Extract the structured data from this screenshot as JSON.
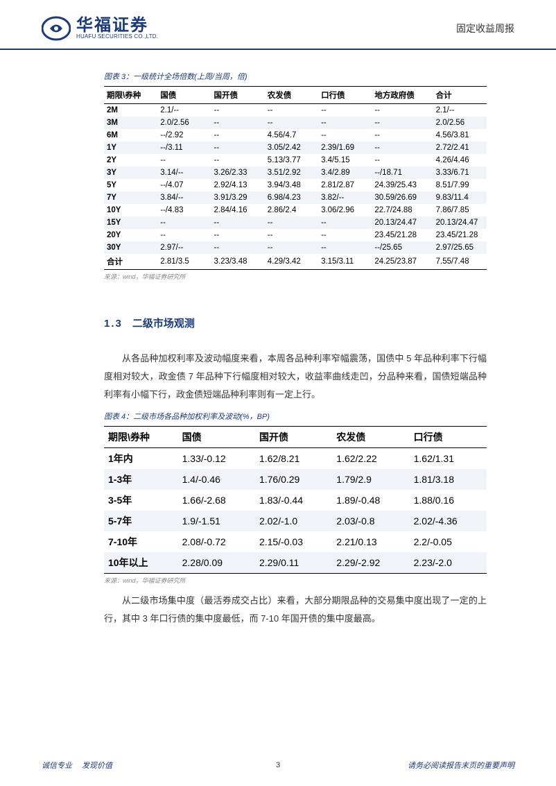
{
  "header": {
    "logo_cn": "华福证券",
    "logo_en": "HUAFU SECURITIES CO.,LTD.",
    "doc_type": "固定收益周报"
  },
  "table1": {
    "title": "图表 3：一级统计全场倍数(上周/当周，倍)",
    "columns": [
      "期限\\券种",
      "国债",
      "国开债",
      "农发债",
      "口行债",
      "地方政府债",
      "合计"
    ],
    "rows": [
      [
        "2M",
        "2.1/--",
        "--",
        "--",
        "--",
        "--",
        "2.1/--"
      ],
      [
        "3M",
        "2.0/2.56",
        "--",
        "--",
        "--",
        "--",
        "2.0/2.56"
      ],
      [
        "6M",
        "--/2.92",
        "--",
        "4.56/4.7",
        "--",
        "--",
        "4.56/3.81"
      ],
      [
        "1Y",
        "--/3.11",
        "--",
        "3.05/2.42",
        "2.39/1.69",
        "--",
        "2.72/2.41"
      ],
      [
        "2Y",
        "--",
        "--",
        "5.13/3.77",
        "3.4/5.15",
        "--",
        "4.26/4.46"
      ],
      [
        "3Y",
        "3.14/--",
        "3.26/2.33",
        "3.51/2.92",
        "3.4/2.89",
        "--/18.71",
        "3.33/6.71"
      ],
      [
        "5Y",
        "--/4.07",
        "2.92/4.13",
        "3.94/3.48",
        "2.81/2.87",
        "24.39/25.43",
        "8.51/7.99"
      ],
      [
        "7Y",
        "3.84/--",
        "3.91/3.29",
        "6.98/4.23",
        "3.82/--",
        "30.59/26.69",
        "9.83/11.4"
      ],
      [
        "10Y",
        "--/4.83",
        "2.84/4.16",
        "2.86/2.4",
        "3.06/2.96",
        "22.7/24.88",
        "7.86/7.85"
      ],
      [
        "15Y",
        "--",
        "--",
        "--",
        "--",
        "20.13/24.47",
        "20.13/24.47"
      ],
      [
        "20Y",
        "--",
        "--",
        "--",
        "--",
        "23.45/21.28",
        "23.45/21.28"
      ],
      [
        "30Y",
        "2.97/--",
        "--",
        "--",
        "--",
        "--/25.65",
        "2.97/25.65"
      ],
      [
        "合计",
        "2.81/3.5",
        "3.23/3.48",
        "4.29/3.42",
        "3.15/3.11",
        "24.25/23.87",
        "7.55/7.48"
      ]
    ],
    "source": "来源：wind，华福证券研究所"
  },
  "section": {
    "num": "1.3",
    "title": "二级市场观测"
  },
  "para1": "从各品种加权利率及波动幅度来看，本周各品种利率窄幅震荡，国债中 5 年品种利率下行幅度相对较大，政金债 7 年品种下行幅度相对较大，收益率曲线走凹，分品种来看，国债短端品种利率有小幅下行，政金债短端品种利率则有一定上行。",
  "table2": {
    "title": "图表 4：二级市场各品种加权利率及波动(%，BP)",
    "columns": [
      "期限\\券种",
      "国债",
      "国开债",
      "农发债",
      "口行债"
    ],
    "rows": [
      [
        "1年内",
        "1.33/-0.12",
        "1.62/8.21",
        "1.62/2.22",
        "1.62/1.31"
      ],
      [
        "1-3年",
        "1.4/-0.46",
        "1.76/0.29",
        "1.79/2.9",
        "1.81/3.18"
      ],
      [
        "3-5年",
        "1.66/-2.68",
        "1.83/-0.44",
        "1.89/-0.48",
        "1.88/0.16"
      ],
      [
        "5-7年",
        "1.9/-1.51",
        "2.02/-1.0",
        "2.03/-0.8",
        "2.02/-4.36"
      ],
      [
        "7-10年",
        "2.08/-0.72",
        "2.15/-0.03",
        "2.21/0.13",
        "2.2/-0.05"
      ],
      [
        "10年以上",
        "2.28/0.09",
        "2.29/0.11",
        "2.29/-2.92",
        "2.23/-2.0"
      ]
    ],
    "source": "来源：wind，华福证券研究所"
  },
  "para2": "从二级市场集中度（最活券成交占比）来看，大部分期限品种的交易集中度出现了一定的上行，其中 3 年口行债的集中度最低，而 7-10 年国开债的集中度最高。",
  "footer": {
    "left1": "诚信专业",
    "left2": "发现价值",
    "page": "3",
    "right": "请务必阅读报告末页的重要声明"
  },
  "colors": {
    "brand": "#1a3a7a",
    "stripe": "#f0f3f7",
    "text": "#333333",
    "muted": "#888888"
  }
}
